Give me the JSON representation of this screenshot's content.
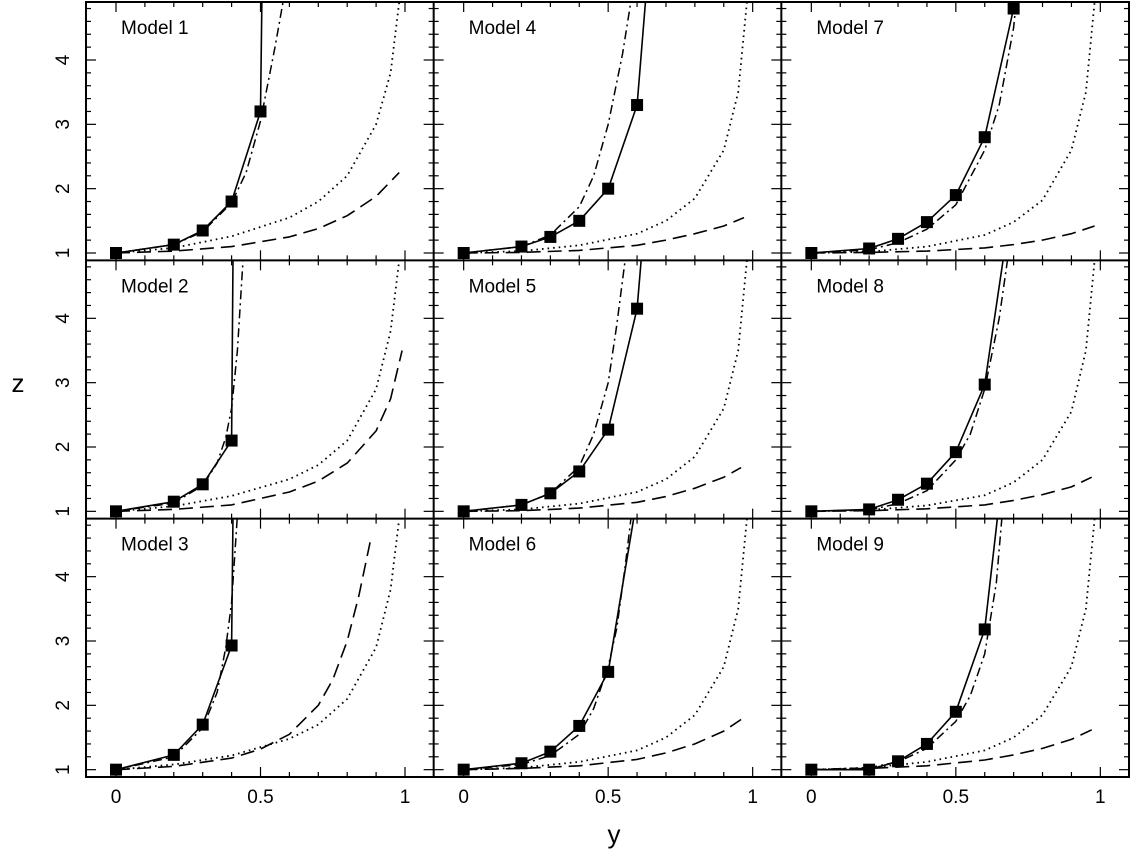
{
  "figure": {
    "xlabel": "y",
    "ylabel": "z",
    "x_tick_labels": [
      "0",
      "0.5",
      "1"
    ],
    "y_tick_labels": [
      "1",
      "2",
      "3",
      "4"
    ]
  },
  "chart_data": [
    {
      "type": "line",
      "title": "Model 1",
      "xlim": [
        -0.1,
        1.1
      ],
      "ylim": [
        0.9,
        4.95
      ],
      "series": [
        {
          "style": "solid-squares",
          "x": [
            0,
            0.2,
            0.3,
            0.4,
            0.5
          ],
          "y": [
            1.0,
            1.13,
            1.35,
            1.8,
            3.2
          ]
        },
        {
          "style": "solid",
          "x": [
            0.5,
            0.505
          ],
          "y": [
            3.2,
            4.95
          ]
        },
        {
          "style": "dashdot",
          "x": [
            0,
            0.2,
            0.3,
            0.4,
            0.45,
            0.5,
            0.55,
            0.58
          ],
          "y": [
            1.0,
            1.13,
            1.33,
            1.78,
            2.25,
            3.05,
            4.2,
            4.95
          ]
        },
        {
          "style": "dotted",
          "x": [
            0,
            0.2,
            0.4,
            0.6,
            0.7,
            0.8,
            0.9,
            0.95,
            0.98
          ],
          "y": [
            1.0,
            1.08,
            1.26,
            1.55,
            1.8,
            2.2,
            3.0,
            3.8,
            4.9
          ]
        },
        {
          "style": "dashed",
          "x": [
            0,
            0.2,
            0.4,
            0.6,
            0.7,
            0.8,
            0.9,
            0.98
          ],
          "y": [
            1.0,
            1.03,
            1.1,
            1.25,
            1.38,
            1.58,
            1.88,
            2.25
          ]
        }
      ]
    },
    {
      "type": "line",
      "title": "Model 4",
      "xlim": [
        -0.1,
        1.1
      ],
      "ylim": [
        0.9,
        4.95
      ],
      "series": [
        {
          "style": "solid-squares",
          "x": [
            0,
            0.2,
            0.3,
            0.4,
            0.5,
            0.6
          ],
          "y": [
            1.0,
            1.1,
            1.25,
            1.5,
            2.0,
            3.3
          ]
        },
        {
          "style": "solid",
          "x": [
            0.6,
            0.63
          ],
          "y": [
            3.3,
            4.95
          ]
        },
        {
          "style": "dashdot",
          "x": [
            0,
            0.2,
            0.3,
            0.4,
            0.45,
            0.5,
            0.55,
            0.58
          ],
          "y": [
            1.0,
            1.1,
            1.28,
            1.72,
            2.2,
            3.0,
            4.1,
            4.95
          ]
        },
        {
          "style": "dotted",
          "x": [
            0,
            0.2,
            0.4,
            0.6,
            0.7,
            0.8,
            0.9,
            0.95,
            0.98
          ],
          "y": [
            1.0,
            1.03,
            1.12,
            1.3,
            1.5,
            1.85,
            2.6,
            3.5,
            4.9
          ]
        },
        {
          "style": "dashed",
          "x": [
            0,
            0.2,
            0.4,
            0.6,
            0.7,
            0.8,
            0.9,
            0.97
          ],
          "y": [
            1.0,
            1.01,
            1.04,
            1.12,
            1.2,
            1.3,
            1.42,
            1.55
          ]
        }
      ]
    },
    {
      "type": "line",
      "title": "Model 7",
      "xlim": [
        -0.1,
        1.1
      ],
      "ylim": [
        0.9,
        4.95
      ],
      "series": [
        {
          "style": "solid-squares",
          "x": [
            0,
            0.2,
            0.3,
            0.4,
            0.5,
            0.6,
            0.7
          ],
          "y": [
            1.0,
            1.07,
            1.22,
            1.48,
            1.9,
            2.8,
            4.8
          ]
        },
        {
          "style": "dashdot",
          "x": [
            0,
            0.2,
            0.3,
            0.4,
            0.5,
            0.6,
            0.65,
            0.7,
            0.71
          ],
          "y": [
            1.0,
            1.05,
            1.16,
            1.37,
            1.75,
            2.6,
            3.3,
            4.5,
            4.95
          ]
        },
        {
          "style": "dotted",
          "x": [
            0,
            0.2,
            0.4,
            0.6,
            0.7,
            0.8,
            0.9,
            0.95,
            0.98
          ],
          "y": [
            1.0,
            1.02,
            1.1,
            1.28,
            1.48,
            1.82,
            2.6,
            3.5,
            4.9
          ]
        },
        {
          "style": "dashed",
          "x": [
            0,
            0.2,
            0.4,
            0.6,
            0.7,
            0.8,
            0.9,
            0.98
          ],
          "y": [
            1.0,
            1.01,
            1.03,
            1.08,
            1.13,
            1.2,
            1.3,
            1.42
          ]
        }
      ]
    },
    {
      "type": "line",
      "title": "Model 2",
      "xlim": [
        -0.1,
        1.1
      ],
      "ylim": [
        0.9,
        4.95
      ],
      "series": [
        {
          "style": "solid-squares",
          "x": [
            0,
            0.2,
            0.3,
            0.4
          ],
          "y": [
            1.0,
            1.15,
            1.42,
            2.1
          ]
        },
        {
          "style": "solid",
          "x": [
            0.4,
            0.405
          ],
          "y": [
            2.1,
            4.95
          ]
        },
        {
          "style": "dashdot",
          "x": [
            0,
            0.2,
            0.3,
            0.35,
            0.38,
            0.4,
            0.42,
            0.44
          ],
          "y": [
            1.0,
            1.13,
            1.4,
            1.75,
            2.15,
            2.6,
            3.5,
            4.95
          ]
        },
        {
          "style": "dotted",
          "x": [
            0,
            0.2,
            0.4,
            0.6,
            0.7,
            0.8,
            0.9,
            0.95,
            0.98
          ],
          "y": [
            1.0,
            1.08,
            1.24,
            1.5,
            1.72,
            2.1,
            2.9,
            3.8,
            4.9
          ]
        },
        {
          "style": "dashed",
          "x": [
            0,
            0.2,
            0.4,
            0.6,
            0.7,
            0.8,
            0.9,
            0.95,
            0.99
          ],
          "y": [
            1.0,
            1.03,
            1.1,
            1.3,
            1.47,
            1.75,
            2.25,
            2.75,
            3.5
          ]
        }
      ]
    },
    {
      "type": "line",
      "title": "Model 5",
      "xlim": [
        -0.1,
        1.1
      ],
      "ylim": [
        0.9,
        4.95
      ],
      "series": [
        {
          "style": "solid-squares",
          "x": [
            0,
            0.2,
            0.3,
            0.4,
            0.5,
            0.6
          ],
          "y": [
            1.0,
            1.1,
            1.28,
            1.62,
            2.27,
            4.15
          ]
        },
        {
          "style": "solid",
          "x": [
            0.6,
            0.615
          ],
          "y": [
            4.15,
            4.95
          ]
        },
        {
          "style": "dashdot",
          "x": [
            0,
            0.2,
            0.3,
            0.4,
            0.45,
            0.5,
            0.53,
            0.56
          ],
          "y": [
            1.0,
            1.1,
            1.28,
            1.7,
            2.2,
            3.0,
            3.9,
            4.95
          ]
        },
        {
          "style": "dotted",
          "x": [
            0,
            0.2,
            0.4,
            0.6,
            0.7,
            0.8,
            0.9,
            0.95,
            0.98
          ],
          "y": [
            1.0,
            1.03,
            1.12,
            1.3,
            1.5,
            1.85,
            2.6,
            3.5,
            4.9
          ]
        },
        {
          "style": "dashed",
          "x": [
            0,
            0.2,
            0.4,
            0.6,
            0.7,
            0.8,
            0.9,
            0.96
          ],
          "y": [
            1.0,
            1.01,
            1.05,
            1.14,
            1.23,
            1.36,
            1.53,
            1.68
          ]
        }
      ]
    },
    {
      "type": "line",
      "title": "Model 8",
      "xlim": [
        -0.1,
        1.1
      ],
      "ylim": [
        0.9,
        4.95
      ],
      "series": [
        {
          "style": "solid-squares",
          "x": [
            0,
            0.2,
            0.3,
            0.4,
            0.5,
            0.6
          ],
          "y": [
            1.0,
            1.03,
            1.18,
            1.43,
            1.92,
            2.97
          ]
        },
        {
          "style": "solid",
          "x": [
            0.6,
            0.665
          ],
          "y": [
            2.97,
            4.95
          ]
        },
        {
          "style": "dashdot",
          "x": [
            0,
            0.2,
            0.3,
            0.4,
            0.5,
            0.55,
            0.6,
            0.65,
            0.68
          ],
          "y": [
            1.0,
            1.02,
            1.12,
            1.32,
            1.8,
            2.2,
            2.9,
            4.0,
            4.95
          ]
        },
        {
          "style": "dotted",
          "x": [
            0,
            0.2,
            0.4,
            0.6,
            0.7,
            0.8,
            0.9,
            0.95,
            0.98
          ],
          "y": [
            1.0,
            1.02,
            1.09,
            1.25,
            1.45,
            1.8,
            2.55,
            3.5,
            4.9
          ]
        },
        {
          "style": "dashed",
          "x": [
            0,
            0.2,
            0.4,
            0.6,
            0.7,
            0.8,
            0.9,
            0.97
          ],
          "y": [
            1.0,
            1.01,
            1.04,
            1.1,
            1.17,
            1.26,
            1.38,
            1.53
          ]
        }
      ]
    },
    {
      "type": "line",
      "title": "Model 3",
      "xlim": [
        -0.1,
        1.1
      ],
      "ylim": [
        0.9,
        4.95
      ],
      "series": [
        {
          "style": "solid-squares",
          "x": [
            0,
            0.2,
            0.3,
            0.4
          ],
          "y": [
            1.0,
            1.23,
            1.7,
            2.93
          ]
        },
        {
          "style": "solid",
          "x": [
            0.4,
            0.405
          ],
          "y": [
            2.93,
            4.95
          ]
        },
        {
          "style": "dashdot",
          "x": [
            0,
            0.2,
            0.3,
            0.35,
            0.38,
            0.4,
            0.42
          ],
          "y": [
            1.0,
            1.2,
            1.65,
            2.2,
            2.9,
            3.6,
            4.95
          ]
        },
        {
          "style": "dotted",
          "x": [
            0,
            0.2,
            0.4,
            0.6,
            0.7,
            0.8,
            0.9,
            0.95,
            0.98
          ],
          "y": [
            1.0,
            1.08,
            1.22,
            1.48,
            1.7,
            2.1,
            2.9,
            3.8,
            4.9
          ]
        },
        {
          "style": "dashed",
          "x": [
            0,
            0.2,
            0.4,
            0.5,
            0.6,
            0.7,
            0.75,
            0.8,
            0.84,
            0.88
          ],
          "y": [
            1.0,
            1.05,
            1.18,
            1.32,
            1.55,
            2.0,
            2.4,
            3.0,
            3.7,
            4.55
          ]
        }
      ]
    },
    {
      "type": "line",
      "title": "Model 6",
      "xlim": [
        -0.1,
        1.1
      ],
      "ylim": [
        0.9,
        4.95
      ],
      "series": [
        {
          "style": "solid-squares",
          "x": [
            0,
            0.2,
            0.3,
            0.4,
            0.5
          ],
          "y": [
            1.0,
            1.1,
            1.28,
            1.68,
            2.52
          ]
        },
        {
          "style": "solid",
          "x": [
            0.5,
            0.59
          ],
          "y": [
            2.52,
            4.95
          ]
        },
        {
          "style": "dashdot",
          "x": [
            0,
            0.2,
            0.3,
            0.4,
            0.45,
            0.5,
            0.53,
            0.56,
            0.58
          ],
          "y": [
            1.0,
            1.08,
            1.22,
            1.55,
            1.95,
            2.6,
            3.2,
            4.2,
            4.95
          ]
        },
        {
          "style": "dotted",
          "x": [
            0,
            0.2,
            0.4,
            0.6,
            0.7,
            0.8,
            0.9,
            0.95,
            0.98
          ],
          "y": [
            1.0,
            1.03,
            1.12,
            1.3,
            1.5,
            1.85,
            2.6,
            3.5,
            4.9
          ]
        },
        {
          "style": "dashed",
          "x": [
            0,
            0.2,
            0.4,
            0.6,
            0.7,
            0.8,
            0.9,
            0.96
          ],
          "y": [
            1.0,
            1.02,
            1.06,
            1.16,
            1.26,
            1.4,
            1.6,
            1.78
          ]
        }
      ]
    },
    {
      "type": "line",
      "title": "Model 9",
      "xlim": [
        -0.1,
        1.1
      ],
      "ylim": [
        0.9,
        4.95
      ],
      "series": [
        {
          "style": "solid-squares",
          "x": [
            0,
            0.2,
            0.3,
            0.4,
            0.5,
            0.6
          ],
          "y": [
            1.0,
            1.0,
            1.13,
            1.4,
            1.9,
            3.18
          ]
        },
        {
          "style": "solid",
          "x": [
            0.6,
            0.645
          ],
          "y": [
            3.18,
            4.95
          ]
        },
        {
          "style": "dashdot",
          "x": [
            0,
            0.2,
            0.3,
            0.4,
            0.5,
            0.55,
            0.6,
            0.64,
            0.66
          ],
          "y": [
            1.0,
            1.03,
            1.12,
            1.33,
            1.75,
            2.15,
            2.8,
            3.9,
            4.95
          ]
        },
        {
          "style": "dotted",
          "x": [
            0,
            0.2,
            0.4,
            0.6,
            0.7,
            0.8,
            0.9,
            0.95,
            0.98
          ],
          "y": [
            1.0,
            1.03,
            1.12,
            1.3,
            1.5,
            1.85,
            2.6,
            3.5,
            4.9
          ]
        },
        {
          "style": "dashed",
          "x": [
            0,
            0.2,
            0.4,
            0.6,
            0.7,
            0.8,
            0.9,
            0.97
          ],
          "y": [
            1.0,
            1.02,
            1.06,
            1.15,
            1.23,
            1.33,
            1.47,
            1.62
          ]
        }
      ]
    }
  ]
}
